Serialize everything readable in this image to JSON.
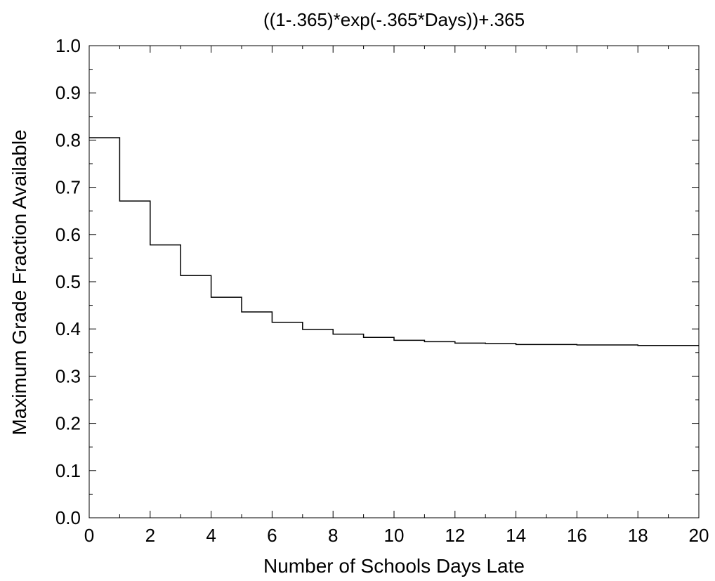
{
  "chart_data": {
    "type": "line",
    "step": true,
    "title": "((1-.365)*exp(-.365*Days))+.365",
    "xlabel": "Number of Schools Days Late",
    "ylabel": "Maximum Grade Fraction Available",
    "xlim": [
      0,
      20
    ],
    "ylim": [
      0.0,
      1.0
    ],
    "xticks": [
      "0",
      "2",
      "4",
      "6",
      "8",
      "10",
      "12",
      "14",
      "16",
      "18",
      "20"
    ],
    "yticks": [
      "0.0",
      "0.1",
      "0.2",
      "0.3",
      "0.4",
      "0.5",
      "0.6",
      "0.7",
      "0.8",
      "0.9",
      "1.0"
    ],
    "grid": false,
    "legend": "none",
    "line_color": "#000000",
    "series": [
      {
        "x": [
          0,
          1,
          2,
          3,
          4,
          5,
          6,
          7,
          8,
          9,
          10,
          11,
          12,
          13,
          14,
          15,
          16,
          17,
          18,
          19,
          20
        ],
        "values": [
          0.805,
          0.671,
          0.578,
          0.513,
          0.467,
          0.436,
          0.414,
          0.399,
          0.389,
          0.382,
          0.376,
          0.373,
          0.37,
          0.369,
          0.367,
          0.367,
          0.366,
          0.366,
          0.365,
          0.365,
          0.365
        ]
      }
    ]
  }
}
